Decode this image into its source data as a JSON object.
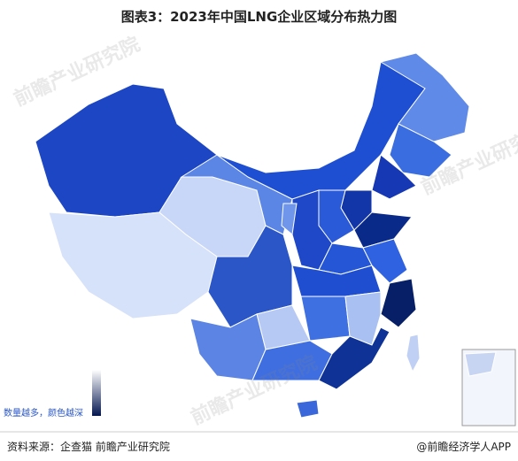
{
  "header": {
    "title": "图表3：2023年中国LNG企业区域分布热力图"
  },
  "legend": {
    "label": "数量越多，颜色越深"
  },
  "footer": {
    "source": "资料来源：企查猫 前瞻产业研究院",
    "credit": "@前瞻经济学人APP"
  },
  "watermark": "前瞻产业研究院"
}
